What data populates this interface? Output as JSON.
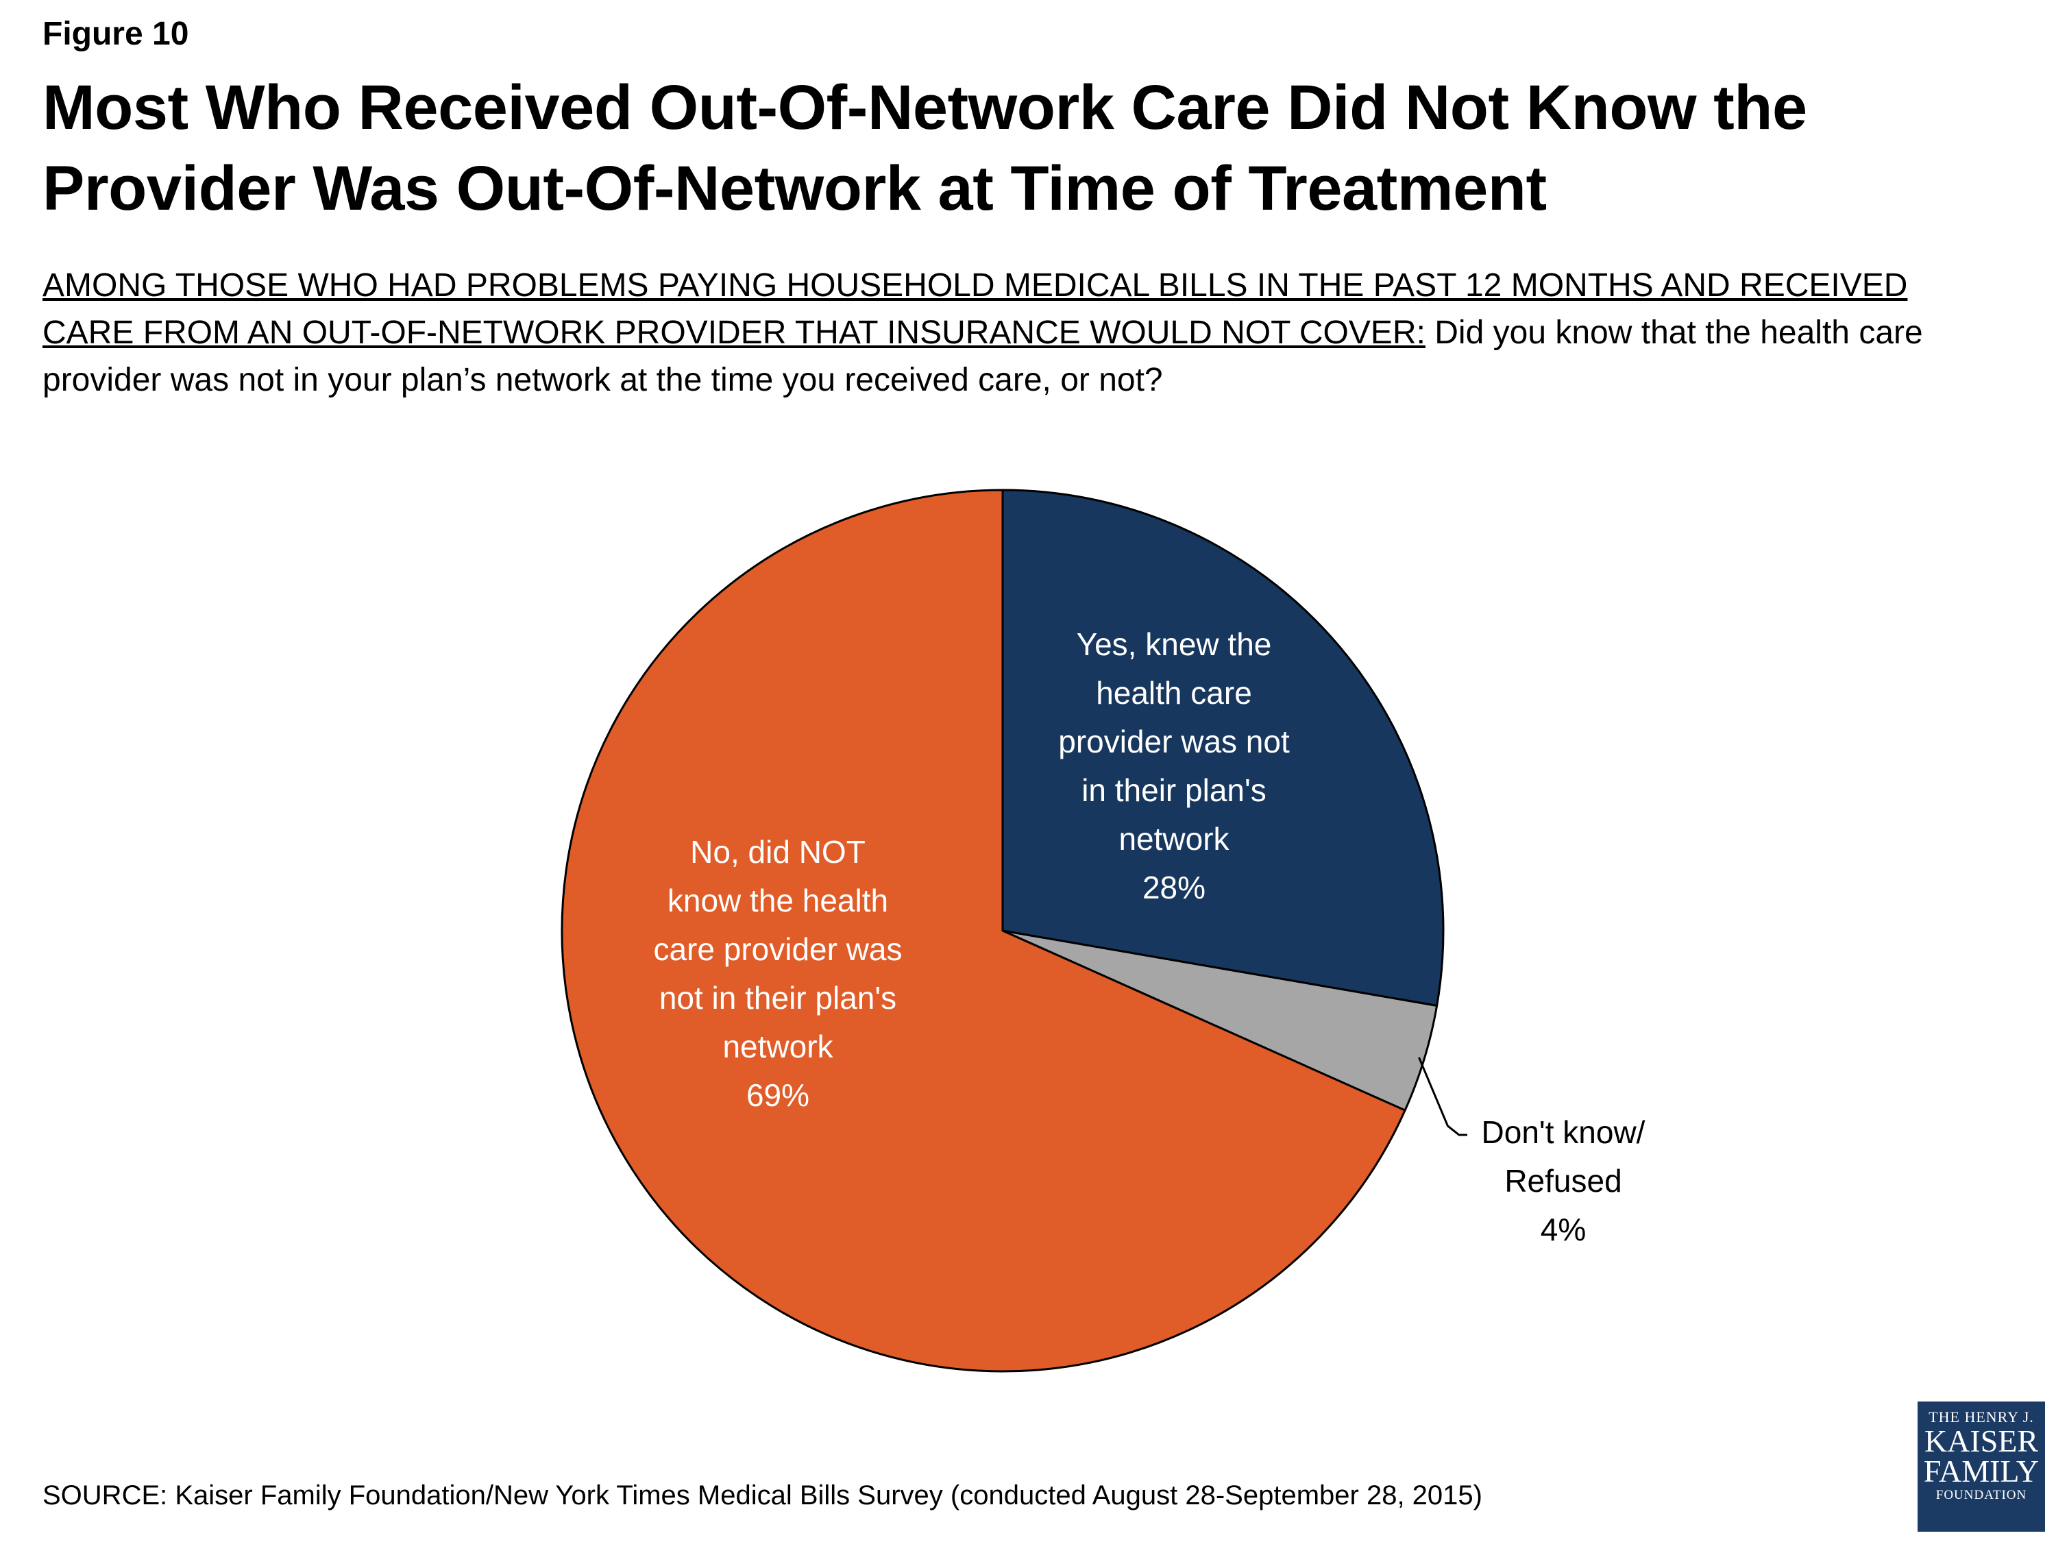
{
  "figure_label": "Figure 10",
  "title": "Most Who Received Out-Of-Network Care Did Not Know the Provider Was Out-Of-Network at Time of Treatment",
  "subtitle": {
    "underlined": "AMONG THOSE WHO HAD PROBLEMS PAYING HOUSEHOLD MEDICAL BILLS IN THE PAST 12 MONTHS AND RECEIVED CARE FROM AN OUT-OF-NETWORK PROVIDER THAT INSURANCE WOULD NOT COVER:",
    "question": "Did you know that the health care provider was not in your plan’s network at the time you received care, or not?"
  },
  "chart_data": {
    "type": "pie",
    "start_angle_deg": 0,
    "direction": "clockwise",
    "slices": [
      {
        "label_lines": [
          "Yes, knew the",
          "health care",
          "provider was not",
          "in their plan's",
          "network"
        ],
        "value_label": "28%",
        "value": 28,
        "color": "#17375e",
        "label_color": "#ffffff"
      },
      {
        "label_lines": [
          "Don't know/",
          "Refused"
        ],
        "value_label": "4%",
        "value": 4,
        "color": "#a6a6a6",
        "label_color": "#000000"
      },
      {
        "label_lines": [
          "No, did NOT",
          "know the health",
          "care provider was",
          "not in their plan's",
          "network"
        ],
        "value_label": "69%",
        "value": 69,
        "color": "#e05c28",
        "label_color": "#ffffff"
      }
    ]
  },
  "source": "SOURCE: Kaiser Family Foundation/New York Times Medical Bills Survey (conducted August 28-September 28, 2015)",
  "logo": {
    "line1": "THE HENRY J.",
    "line2": "KAISER",
    "line3": "FAMILY",
    "line4": "FOUNDATION"
  }
}
